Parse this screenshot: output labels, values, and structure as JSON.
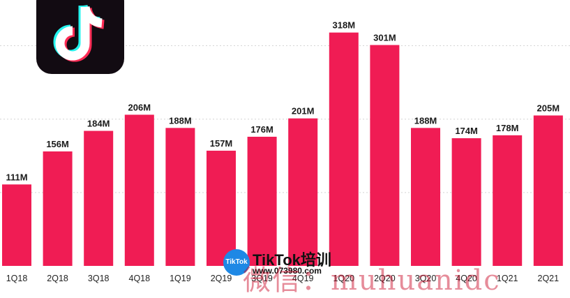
{
  "chart_data": {
    "type": "bar",
    "categories": [
      "1Q18",
      "2Q18",
      "3Q18",
      "4Q18",
      "1Q19",
      "2Q19",
      "3Q19",
      "4Q19",
      "1Q20",
      "2Q20",
      "3Q20",
      "4Q20",
      "1Q21",
      "2Q21"
    ],
    "values": [
      111,
      156,
      184,
      206,
      188,
      157,
      176,
      201,
      318,
      301,
      188,
      174,
      178,
      205
    ],
    "value_labels": [
      "111M",
      "156M",
      "184M",
      "206M",
      "188M",
      "157M",
      "176M",
      "201M",
      "318M",
      "301M",
      "188M",
      "174M",
      "178M",
      "205M"
    ],
    "ylim": [
      0,
      340
    ],
    "grid_values": [
      100,
      200,
      300
    ],
    "grid": true,
    "bar_color": "#f01c54"
  },
  "logo": {
    "name": "tiktok-icon",
    "colors": {
      "background": "#120b12",
      "cyan": "#25f4ee",
      "red": "#fe2c55",
      "white": "#ffffff"
    }
  },
  "watermark": {
    "badge": "TikTok",
    "title": "TikTok培训",
    "url": "www.073980.com",
    "overlay": "微信：muhuanidc"
  }
}
